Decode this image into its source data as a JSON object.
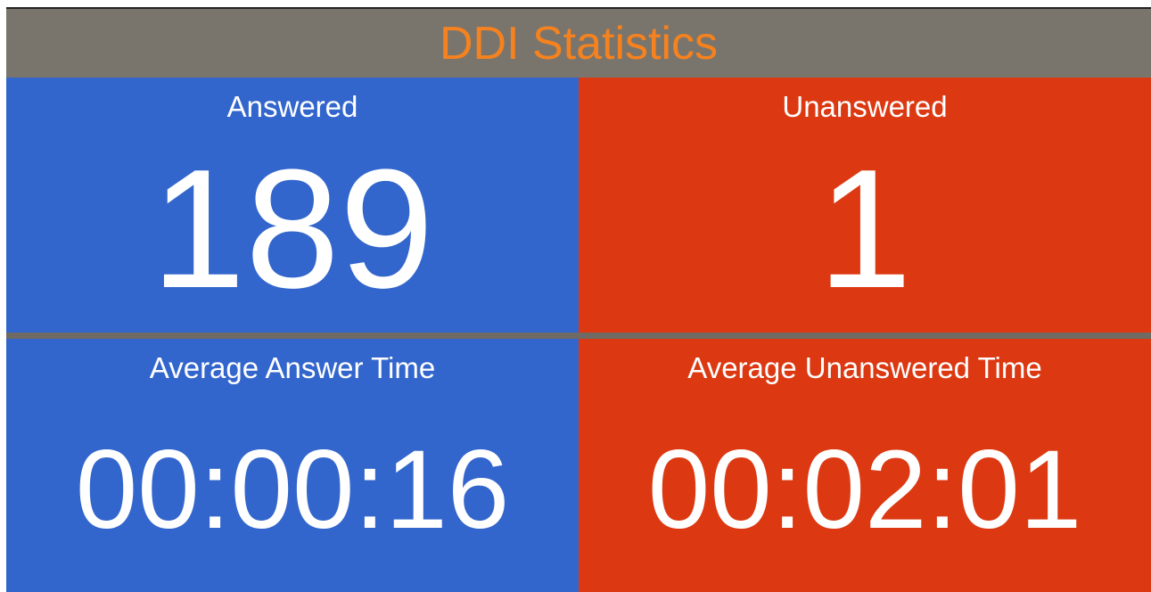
{
  "header": {
    "title": "DDI Statistics"
  },
  "tiles": [
    {
      "label": "Answered",
      "value": "189"
    },
    {
      "label": "Unanswered",
      "value": "1"
    },
    {
      "label": "Average Answer Time",
      "value": "00:00:16"
    },
    {
      "label": "Average Unanswered Time",
      "value": "00:02:01"
    }
  ]
}
